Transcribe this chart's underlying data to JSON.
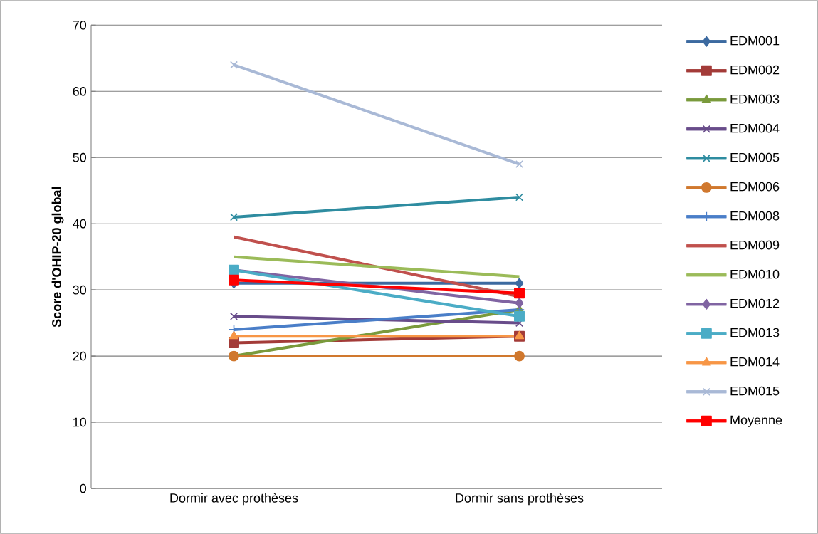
{
  "chart_data": {
    "type": "line",
    "ylabel": "Score d'OHIP-20 global",
    "categories": [
      "Dormir avec prothèses",
      "Dormir sans prothèses"
    ],
    "ylim": [
      0,
      70
    ],
    "yticks": [
      0,
      10,
      20,
      30,
      40,
      50,
      60,
      70
    ],
    "grid": "y",
    "legend": "right",
    "series": [
      {
        "name": "EDM001",
        "color": "#3c6aa0",
        "marker": "diamond",
        "values": [
          31,
          31
        ]
      },
      {
        "name": "EDM002",
        "color": "#a33b38",
        "marker": "square",
        "values": [
          22,
          23
        ]
      },
      {
        "name": "EDM003",
        "color": "#7a9a3c",
        "marker": "triangle",
        "values": [
          20,
          27
        ]
      },
      {
        "name": "EDM004",
        "color": "#684c8a",
        "marker": "cross",
        "values": [
          26,
          25
        ]
      },
      {
        "name": "EDM005",
        "color": "#2e8ca0",
        "marker": "cross",
        "values": [
          41,
          44
        ]
      },
      {
        "name": "EDM006",
        "color": "#d0782e",
        "marker": "circle",
        "values": [
          20,
          20
        ]
      },
      {
        "name": "EDM008",
        "color": "#4a7ec8",
        "marker": "plus",
        "values": [
          24,
          27
        ]
      },
      {
        "name": "EDM009",
        "color": "#c0504d",
        "marker": "none",
        "values": [
          38,
          29
        ]
      },
      {
        "name": "EDM010",
        "color": "#9bbb59",
        "marker": "none",
        "values": [
          35,
          32
        ]
      },
      {
        "name": "EDM012",
        "color": "#8064a2",
        "marker": "diamond",
        "values": [
          33,
          28
        ]
      },
      {
        "name": "EDM013",
        "color": "#4bacc6",
        "marker": "square",
        "values": [
          33,
          26
        ]
      },
      {
        "name": "EDM014",
        "color": "#f79646",
        "marker": "triangle",
        "values": [
          23,
          23
        ]
      },
      {
        "name": "EDM015",
        "color": "#a9b9d6",
        "marker": "cross",
        "values": [
          64,
          49
        ]
      },
      {
        "name": "Moyenne",
        "color": "#ff0000",
        "marker": "square",
        "values": [
          31.5,
          29.5
        ]
      }
    ]
  }
}
